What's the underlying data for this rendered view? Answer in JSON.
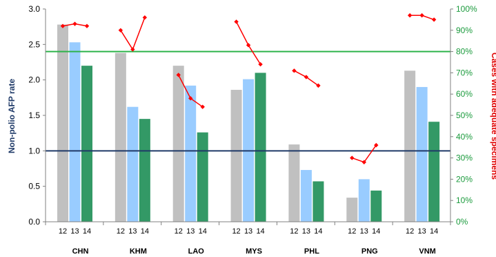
{
  "chart_data": {
    "type": "bar",
    "categories": [
      "CHN",
      "KHM",
      "LAO",
      "MYS",
      "PHL",
      "PNG",
      "VNM"
    ],
    "year_labels": [
      "12",
      "13",
      "14"
    ],
    "series": [
      {
        "values": [
          2.78,
          2.38,
          2.2,
          1.86,
          1.09,
          0.34,
          2.13
        ],
        "color": "#c0c0c0"
      },
      {
        "values": [
          2.53,
          1.62,
          1.92,
          2.01,
          0.73,
          0.6,
          1.9
        ],
        "color": "#99ccff"
      },
      {
        "values": [
          2.2,
          1.45,
          1.26,
          2.1,
          0.57,
          0.44,
          1.41
        ],
        "color": "#339966"
      }
    ],
    "line_series": {
      "color": "#ff0000",
      "values": [
        [
          92,
          93,
          92
        ],
        [
          90,
          81,
          96
        ],
        [
          69,
          58,
          54
        ],
        [
          94,
          83,
          74
        ],
        [
          71,
          68,
          64
        ],
        [
          30,
          28,
          36
        ],
        [
          97,
          97,
          95
        ]
      ]
    },
    "reference_lines": [
      {
        "axis": "left",
        "value": 1.0,
        "color": "#1f3a68"
      },
      {
        "axis": "right",
        "value": 80,
        "color": "#2db34a"
      }
    ],
    "ylabel": "Non-polio AFP rate",
    "y2label": "Cases with adequate specimens",
    "ylim": [
      0,
      3
    ],
    "y_ticks": [
      "0.0",
      "0.5",
      "1.0",
      "1.5",
      "2.0",
      "2.5",
      "3.0"
    ],
    "y2lim": [
      0,
      100
    ],
    "y2_ticks": [
      "0%",
      "10%",
      "20%",
      "30%",
      "40%",
      "50%",
      "60%",
      "70%",
      "80%",
      "90%",
      "100%"
    ],
    "grid": false,
    "legend": "none"
  }
}
